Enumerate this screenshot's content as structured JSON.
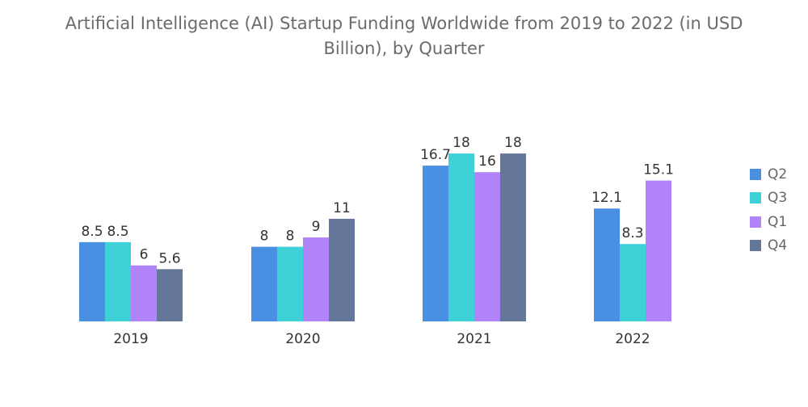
{
  "chart_data": {
    "type": "bar",
    "title_line1": "Artificial Intelligence (AI) Startup Funding Worldwide from 2019 to 2022 (in USD",
    "title_line2": "Billion), by Quarter",
    "categories": [
      "2019",
      "2020",
      "2021",
      "2022"
    ],
    "series": [
      {
        "name": "Q2",
        "color": "#4a90e2",
        "values": [
          8.5,
          8,
          16.7,
          12.1
        ]
      },
      {
        "name": "Q3",
        "color": "#3ed1d8",
        "values": [
          8.5,
          8,
          18,
          8.3
        ]
      },
      {
        "name": "Q1",
        "color": "#b183f8",
        "values": [
          6,
          9,
          16,
          15.1
        ]
      },
      {
        "name": "Q4",
        "color": "#64779b",
        "values": [
          5.6,
          11,
          18,
          null
        ]
      }
    ],
    "value_labels": [
      [
        "8.5",
        "8",
        "16.7",
        "12.1"
      ],
      [
        "8.5",
        "8",
        "18",
        "8.3"
      ],
      [
        "6",
        "9",
        "16",
        "15.1"
      ],
      [
        "5.6",
        "11",
        "18",
        null
      ]
    ],
    "xlabel": "",
    "ylabel": "",
    "ylim": [
      0,
      20
    ],
    "legend_position": "right"
  }
}
